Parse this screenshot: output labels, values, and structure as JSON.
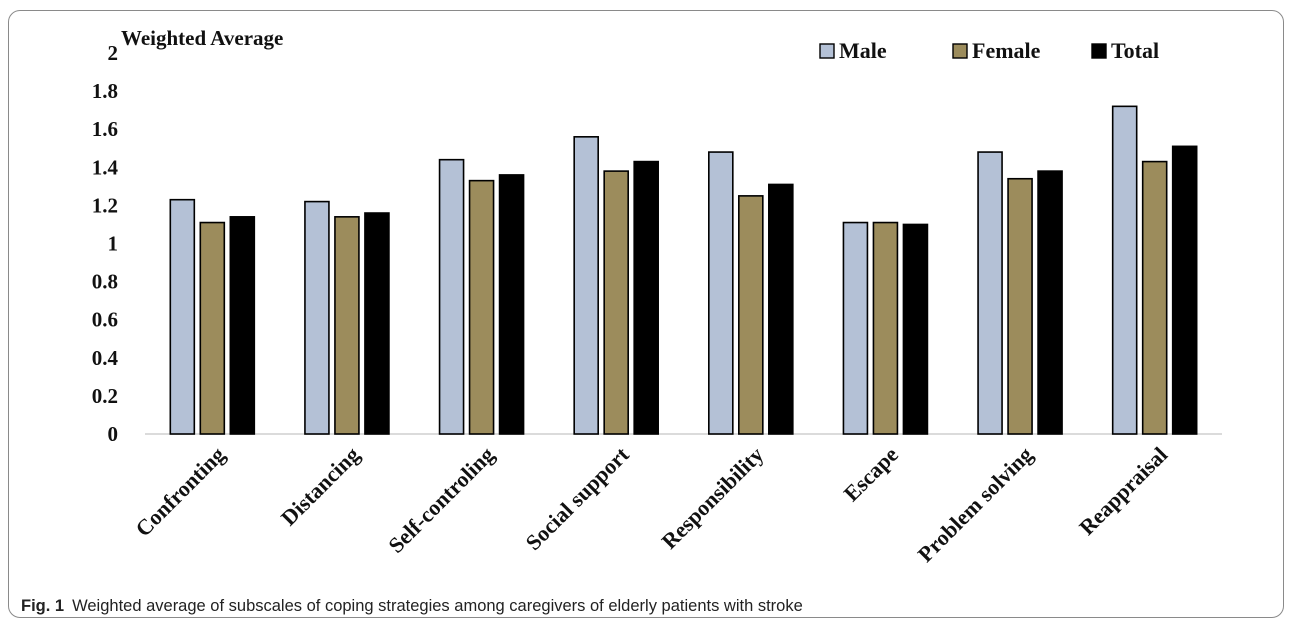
{
  "chart_data": {
    "type": "bar",
    "title": "",
    "ylabel": "Weighted Average",
    "xlabel": "",
    "ylim": [
      0,
      2
    ],
    "yticks": [
      "0",
      "0.2",
      "0.4",
      "0.6",
      "0.8",
      "1",
      "1.2",
      "1.4",
      "1.6",
      "1.8",
      "2"
    ],
    "legend_position": "top-right",
    "categories": [
      "Confronting",
      "Distancing",
      "Self-controling",
      "Social support",
      "Responsibility",
      "Escape",
      "Problem solving",
      "Reappraisal"
    ],
    "series": [
      {
        "name": "Male",
        "color": "#b4c1d6",
        "values": [
          1.23,
          1.22,
          1.44,
          1.56,
          1.48,
          1.11,
          1.48,
          1.72
        ]
      },
      {
        "name": "Female",
        "color": "#9c8c5c",
        "values": [
          1.11,
          1.14,
          1.33,
          1.38,
          1.25,
          1.11,
          1.34,
          1.43
        ]
      },
      {
        "name": "Total",
        "color": "#000000",
        "values": [
          1.14,
          1.16,
          1.36,
          1.43,
          1.31,
          1.1,
          1.38,
          1.51
        ]
      }
    ]
  },
  "caption": {
    "label": "Fig. 1",
    "text": "Weighted average of subscales of coping strategies among caregivers of elderly patients with stroke"
  }
}
